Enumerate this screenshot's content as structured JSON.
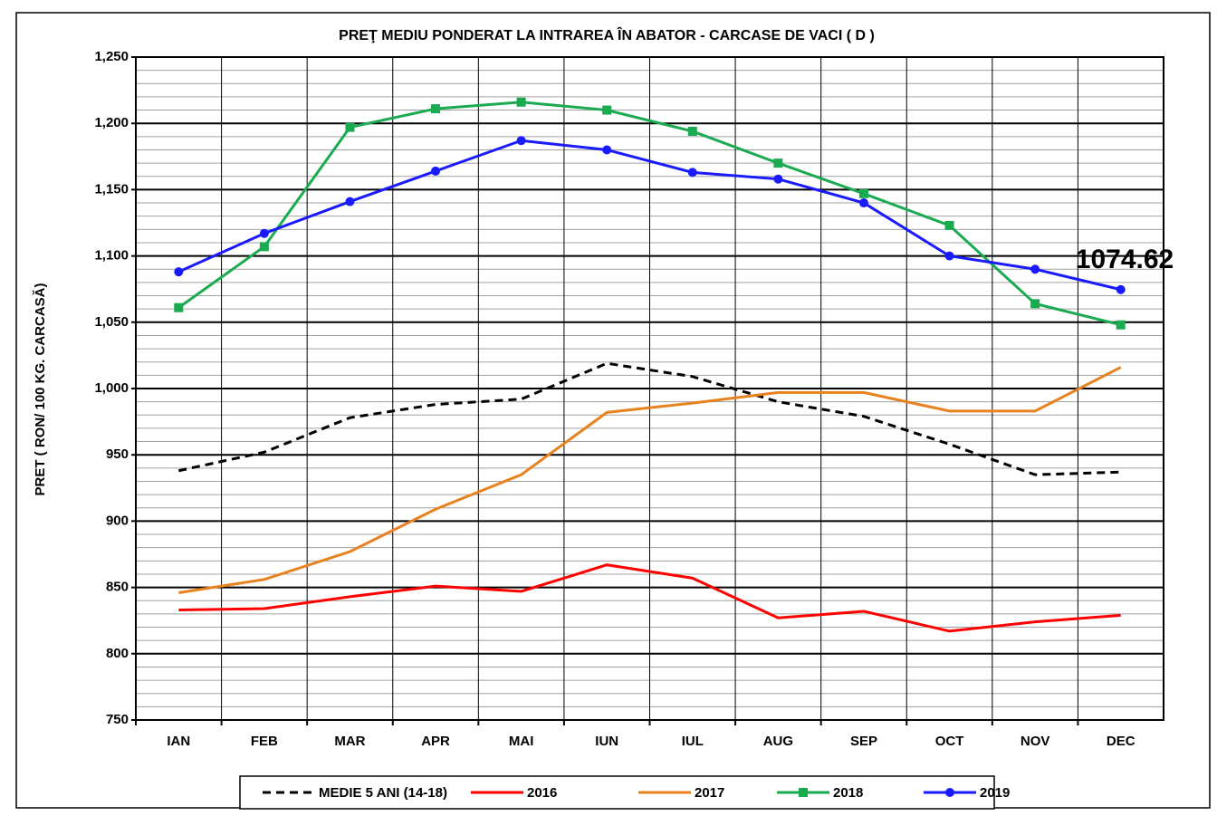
{
  "chart_data": {
    "type": "line",
    "title": "PREŢ MEDIU PONDERAT LA INTRAREA ÎN ABATOR - CARCASE DE VACI ( D )",
    "y_label": "PRET ( RON/ 100 KG. CARCASĂ)",
    "categories": [
      "IAN",
      "FEB",
      "MAR",
      "APR",
      "MAI",
      "IUN",
      "IUL",
      "AUG",
      "SEP",
      "OCT",
      "NOV",
      "DEC"
    ],
    "series": [
      {
        "name": "MEDIE 5 ANI (14-18)",
        "color": "#000000",
        "dashed": true,
        "marker": null,
        "values": [
          938,
          952,
          978,
          988,
          992,
          1019,
          1009,
          990,
          979,
          958,
          935,
          937
        ]
      },
      {
        "name": "2016",
        "color": "#ff0000",
        "dashed": false,
        "marker": null,
        "values": [
          833,
          834,
          843,
          851,
          847,
          867,
          857,
          827,
          832,
          817,
          824,
          829
        ]
      },
      {
        "name": "2017",
        "color": "#e8821e",
        "dashed": false,
        "marker": null,
        "values": [
          846,
          856,
          877,
          909,
          935,
          982,
          989,
          997,
          997,
          983,
          983,
          1016
        ]
      },
      {
        "name": "2018",
        "color": "#1aaa50",
        "dashed": false,
        "marker": "square",
        "values": [
          1061,
          1107,
          1197,
          1211,
          1216,
          1210,
          1194,
          1170,
          1147,
          1123,
          1064,
          1048
        ]
      },
      {
        "name": "2019",
        "color": "#1a1aff",
        "dashed": false,
        "marker": "circle",
        "values": [
          1088,
          1117,
          1141,
          1164,
          1187,
          1180,
          1163,
          1158,
          1140,
          1100,
          1090,
          1074.62
        ]
      }
    ],
    "annotation": {
      "text": "1074.62",
      "color": "#1a1aff"
    },
    "ylim": [
      750,
      1250
    ],
    "yticks": [
      750,
      800,
      850,
      900,
      950,
      {
        "value": 1000,
        "label": "1,000"
      },
      {
        "value": 1050,
        "label": "1,050"
      },
      {
        "value": 1100,
        "label": "1,100"
      },
      {
        "value": 1150,
        "label": "1,150"
      },
      {
        "value": 1200,
        "label": "1,200"
      },
      {
        "value": 1250,
        "label": "1,250"
      }
    ],
    "grid": true,
    "legend": "bottom"
  }
}
